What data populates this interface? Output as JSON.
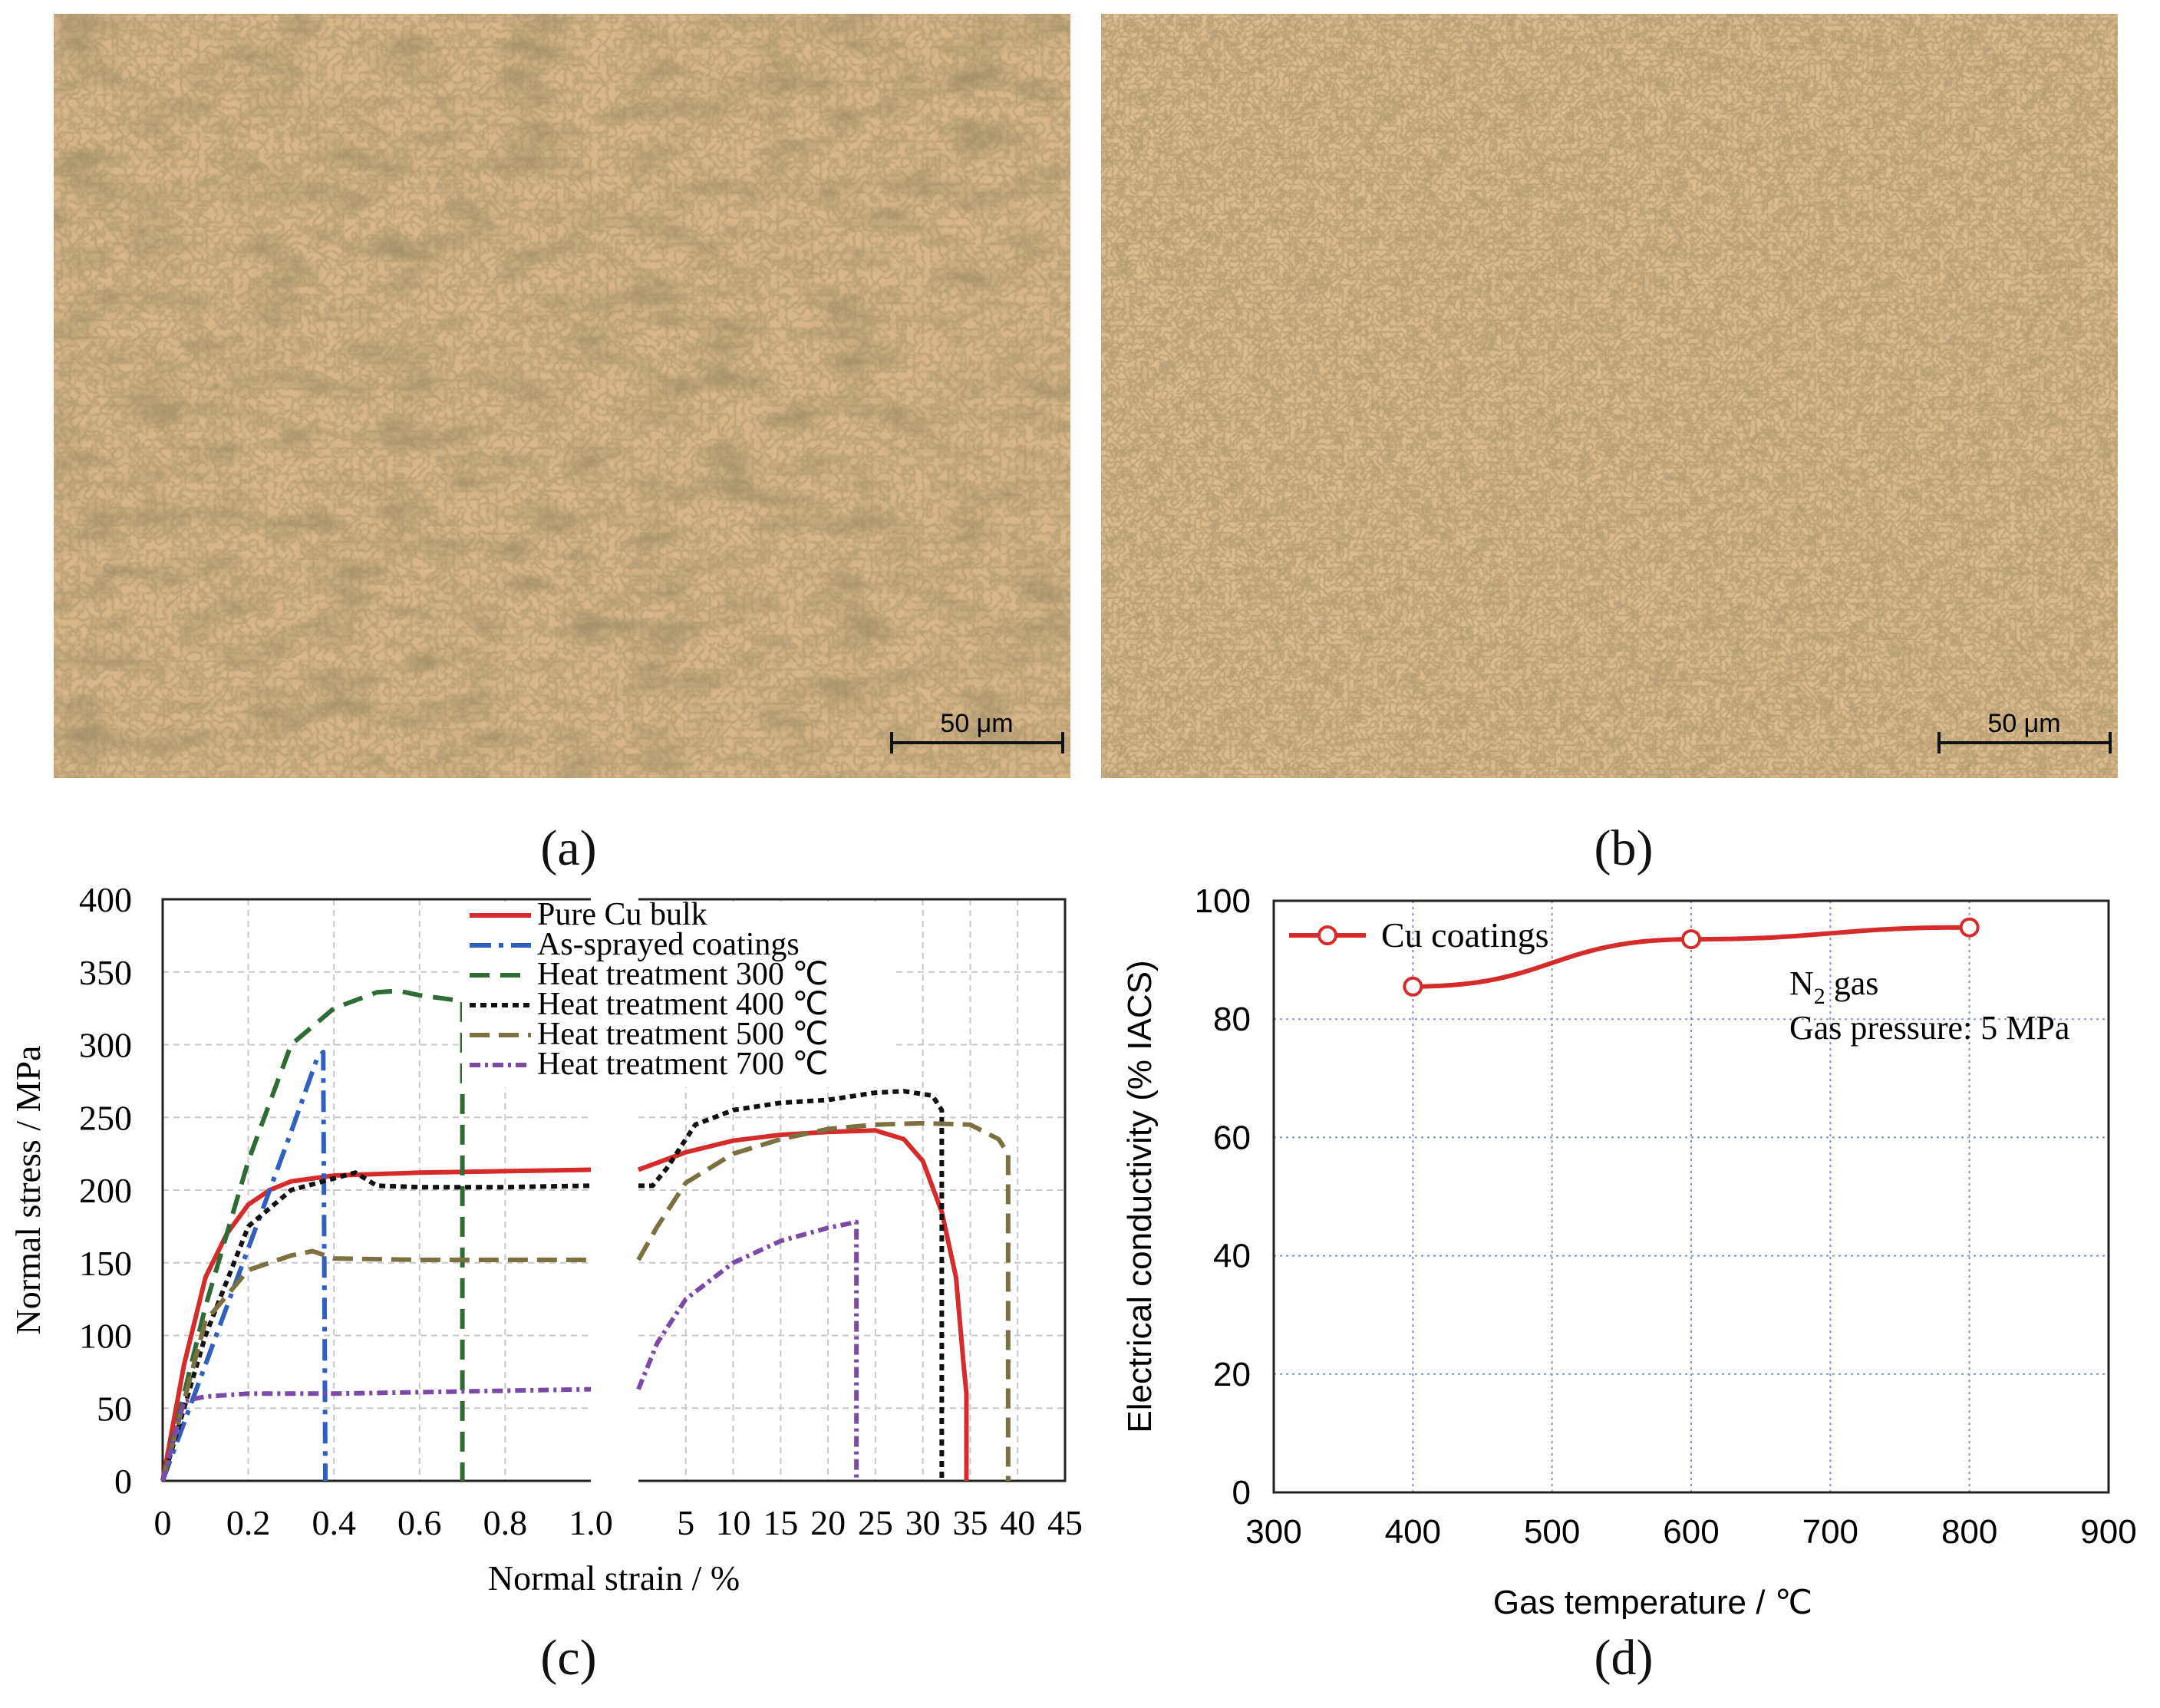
{
  "panels": {
    "a": {
      "label": "(a)",
      "scale_bar": "50 μm"
    },
    "b": {
      "label": "(b)",
      "scale_bar": "50 μm"
    },
    "c": {
      "label": "(c)"
    },
    "d": {
      "label": "(d)"
    }
  },
  "colors": {
    "pure_cu": "#d62b2b",
    "as_sprayed": "#2f5fc0",
    "ht300": "#2f6b35",
    "ht400": "#111111",
    "ht500": "#7a7040",
    "ht700": "#7a4aa6",
    "micrograph_base": "#d8b688",
    "grid": "#7f93c8"
  },
  "chart_data": [
    {
      "type": "line",
      "title": "",
      "xlabel": "Normal strain / %",
      "ylabel": "Normal stress / MPa",
      "ylim": [
        0,
        400
      ],
      "yticks": [
        0,
        50,
        100,
        150,
        200,
        250,
        300,
        350,
        400
      ],
      "ytick_labels": [
        "0",
        "50",
        "100",
        "150",
        "200",
        "250",
        "300",
        "350",
        "400"
      ],
      "left_xlim": [
        0,
        1.0
      ],
      "left_xticks": [
        0,
        0.2,
        0.4,
        0.6,
        0.8,
        1.0
      ],
      "left_xtick_labels": [
        "0",
        "0.2",
        "0.4",
        "0.6",
        "0.8",
        "1.0"
      ],
      "right_xlim": [
        0,
        45
      ],
      "right_xticks": [
        5,
        10,
        15,
        20,
        25,
        30,
        35,
        40,
        45
      ],
      "right_xtick_labels": [
        "5",
        "10",
        "15",
        "20",
        "25",
        "30",
        "35",
        "40",
        "45"
      ],
      "legend": "top-right",
      "series": [
        {
          "name": "Pure Cu bulk",
          "color_key": "pure_cu",
          "dash": "",
          "left": [
            [
              0,
              0
            ],
            [
              0.05,
              80
            ],
            [
              0.1,
              140
            ],
            [
              0.15,
              170
            ],
            [
              0.2,
              190
            ],
            [
              0.25,
              200
            ],
            [
              0.3,
              206
            ],
            [
              0.4,
              210
            ],
            [
              0.6,
              212
            ],
            [
              0.8,
              213
            ],
            [
              1.0,
              214
            ]
          ],
          "right": [
            [
              0,
              214
            ],
            [
              5,
              226
            ],
            [
              10,
              234
            ],
            [
              15,
              238
            ],
            [
              20,
              240
            ],
            [
              25,
              241
            ],
            [
              28,
              235
            ],
            [
              30,
              220
            ],
            [
              32,
              185
            ],
            [
              33.5,
              140
            ],
            [
              34.3,
              80
            ],
            [
              34.6,
              60
            ],
            [
              34.6,
              0
            ]
          ]
        },
        {
          "name": "As-sprayed coatings",
          "color_key": "as_sprayed",
          "dash": "28,10,6,10",
          "left": [
            [
              0,
              0
            ],
            [
              0.1,
              80
            ],
            [
              0.2,
              160
            ],
            [
              0.3,
              240
            ],
            [
              0.36,
              290
            ],
            [
              0.375,
              295
            ],
            [
              0.38,
              0
            ]
          ],
          "right": []
        },
        {
          "name": "Heat treatment 300 ℃",
          "color_key": "ht300",
          "dash": "26,14",
          "left": [
            [
              0,
              0
            ],
            [
              0.1,
              120
            ],
            [
              0.2,
              220
            ],
            [
              0.3,
              300
            ],
            [
              0.4,
              325
            ],
            [
              0.5,
              336
            ],
            [
              0.55,
              337
            ],
            [
              0.6,
              334
            ],
            [
              0.7,
              330
            ],
            [
              0.7,
              0
            ]
          ],
          "right": []
        },
        {
          "name": "Heat treatment 400 ℃",
          "color_key": "ht400",
          "dash": "8,6",
          "left": [
            [
              0,
              0
            ],
            [
              0.1,
              100
            ],
            [
              0.2,
              175
            ],
            [
              0.3,
              200
            ],
            [
              0.4,
              208
            ],
            [
              0.45,
              212
            ],
            [
              0.5,
              203
            ],
            [
              0.6,
              202
            ],
            [
              0.8,
              202
            ],
            [
              1.0,
              203
            ]
          ],
          "right": [
            [
              0,
              203
            ],
            [
              1.5,
              203
            ],
            [
              3,
              215
            ],
            [
              6,
              245
            ],
            [
              10,
              255
            ],
            [
              13,
              258
            ],
            [
              15,
              260
            ],
            [
              20,
              262
            ],
            [
              25,
              267
            ],
            [
              28,
              268
            ],
            [
              31,
              265
            ],
            [
              32,
              255
            ],
            [
              32,
              0
            ]
          ]
        },
        {
          "name": "Heat treatment 500 ℃",
          "color_key": "ht500",
          "dash": "26,12",
          "left": [
            [
              0,
              0
            ],
            [
              0.1,
              110
            ],
            [
              0.2,
              145
            ],
            [
              0.3,
              155
            ],
            [
              0.35,
              158
            ],
            [
              0.4,
              153
            ],
            [
              0.6,
              152
            ],
            [
              0.8,
              152
            ],
            [
              1.0,
              152
            ]
          ],
          "right": [
            [
              0,
              152
            ],
            [
              2,
              175
            ],
            [
              5,
              205
            ],
            [
              10,
              225
            ],
            [
              15,
              235
            ],
            [
              20,
              242
            ],
            [
              25,
              245
            ],
            [
              30,
              246
            ],
            [
              35,
              245
            ],
            [
              38,
              235
            ],
            [
              39,
              225
            ],
            [
              39,
              0
            ]
          ]
        },
        {
          "name": "Heat treatment 700 ℃",
          "color_key": "ht700",
          "dash": "14,6,4,6",
          "left": [
            [
              0,
              0
            ],
            [
              0.05,
              55
            ],
            [
              0.1,
              58
            ],
            [
              0.2,
              60
            ],
            [
              0.4,
              60
            ],
            [
              0.6,
              61
            ],
            [
              0.8,
              62
            ],
            [
              1.0,
              63
            ]
          ],
          "right": [
            [
              0,
              63
            ],
            [
              2,
              95
            ],
            [
              5,
              125
            ],
            [
              10,
              150
            ],
            [
              15,
              165
            ],
            [
              20,
              174
            ],
            [
              23,
              178
            ],
            [
              23,
              0
            ]
          ]
        }
      ]
    },
    {
      "type": "line",
      "title": "",
      "xlabel": "Gas temperature / ℃",
      "ylabel": "Electrical conductivity (% IACS)",
      "xlim": [
        300,
        900
      ],
      "ylim": [
        0,
        100
      ],
      "xticks": [
        300,
        400,
        500,
        600,
        700,
        800,
        900
      ],
      "xtick_labels": [
        "300",
        "400",
        "500",
        "600",
        "700",
        "800",
        "900"
      ],
      "yticks": [
        0,
        20,
        40,
        60,
        80,
        100
      ],
      "ytick_labels": [
        "0",
        "20",
        "40",
        "60",
        "80",
        "100"
      ],
      "legend": "top-left",
      "series": [
        {
          "name": "Cu coatings",
          "color_key": "pure_cu",
          "x": [
            400,
            600,
            800
          ],
          "y": [
            85.5,
            93.5,
            95.5
          ]
        }
      ],
      "annotations": {
        "gas_prefix": "N",
        "gas_subscript": "2",
        "gas_suffix": " gas",
        "pressure": "Gas pressure: 5 MPa"
      }
    }
  ]
}
